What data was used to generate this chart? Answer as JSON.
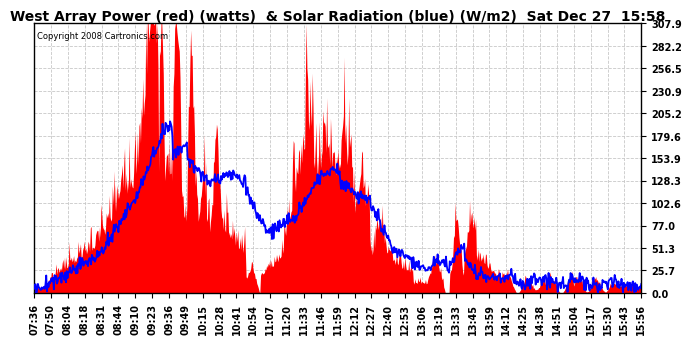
{
  "title": "West Array Power (red) (watts)  & Solar Radiation (blue) (W/m2)  Sat Dec 27  15:58",
  "copyright": "Copyright 2008 Cartronics.com",
  "ylabel_right_ticks": [
    0.0,
    25.7,
    51.3,
    77.0,
    102.6,
    128.3,
    153.9,
    179.6,
    205.2,
    230.9,
    256.5,
    282.2,
    307.9
  ],
  "ymax": 307.9,
  "ymin": 0.0,
  "x_tick_labels": [
    "07:36",
    "07:50",
    "08:04",
    "08:18",
    "08:31",
    "08:44",
    "09:10",
    "09:23",
    "09:36",
    "09:49",
    "10:15",
    "10:28",
    "10:41",
    "10:54",
    "11:07",
    "11:20",
    "11:33",
    "11:46",
    "11:59",
    "12:12",
    "12:27",
    "12:40",
    "12:53",
    "13:06",
    "13:19",
    "13:33",
    "13:45",
    "13:59",
    "14:12",
    "14:25",
    "14:38",
    "14:51",
    "15:04",
    "15:17",
    "15:30",
    "15:43",
    "15:56"
  ],
  "background_color": "#ffffff",
  "grid_color": "#c8c8c8",
  "red_color": "#ff0000",
  "blue_color": "#0000ff",
  "title_fontsize": 10,
  "tick_fontsize": 7
}
